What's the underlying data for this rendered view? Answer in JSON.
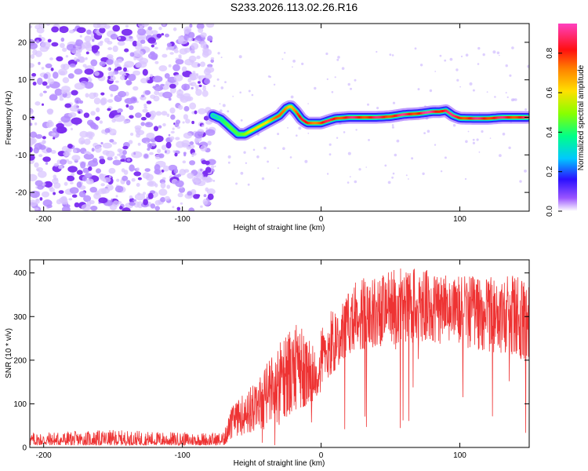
{
  "title": "S233.2026.113.02.26.R16",
  "chart_data": [
    {
      "type": "heatmap",
      "title": "S233.2026.113.02.26.R16",
      "xlabel": "Height of straight line (km)",
      "ylabel": "Frequency (Hz)",
      "xlim": [
        -210,
        150
      ],
      "ylim": [
        -25,
        25
      ],
      "xticks": [
        -200,
        -100,
        0,
        100
      ],
      "xtick_labels": [
        "-200",
        "-100",
        "0",
        "100"
      ],
      "yticks": [
        -20,
        -10,
        0,
        10,
        20
      ],
      "ytick_labels": [
        "-20",
        "-10",
        "0",
        "10",
        "20"
      ],
      "noise_region_x": [
        -210,
        -78
      ],
      "ridge": {
        "x": [
          -78,
          -72,
          -66,
          -60,
          -55,
          -50,
          -45,
          -40,
          -35,
          -30,
          -25,
          -22,
          -18,
          -14,
          -10,
          -5,
          0,
          10,
          20,
          30,
          40,
          50,
          60,
          70,
          80,
          85,
          90,
          95,
          100,
          110,
          120,
          130,
          140,
          150
        ],
        "y": [
          0.5,
          -0.5,
          -2.5,
          -4.5,
          -4.5,
          -3.5,
          -2.5,
          -1.5,
          -0.5,
          0.5,
          2.5,
          3,
          1.5,
          -0.5,
          -1.5,
          -1.5,
          -1.5,
          -0.3,
          0,
          0,
          0,
          0.2,
          0.8,
          1,
          1.5,
          1.5,
          1.8,
          0.5,
          -0.2,
          -0.3,
          -0.3,
          0,
          0,
          0
        ],
        "amplitude": [
          0.3,
          0.4,
          0.45,
          0.5,
          0.55,
          0.6,
          0.65,
          0.7,
          0.75,
          0.75,
          0.8,
          0.75,
          0.8,
          0.85,
          0.85,
          0.85,
          0.85,
          0.9,
          0.9,
          0.9,
          0.9,
          0.9,
          0.92,
          0.92,
          0.95,
          0.95,
          0.95,
          0.9,
          0.9,
          0.9,
          0.92,
          0.9,
          0.9,
          0.88
        ]
      },
      "colorbar": {
        "label": "Normalized spectral amplitude",
        "range": [
          0,
          0.95
        ],
        "ticks": [
          0.0,
          0.2,
          0.4,
          0.6,
          0.8
        ],
        "tick_labels": [
          "0.0",
          "0.2",
          "0.4",
          "0.6",
          "0.8"
        ]
      }
    },
    {
      "type": "line",
      "xlabel": "Height of straight line (km)",
      "ylabel": "SNR (10 * v/v)",
      "xlim": [
        -210,
        150
      ],
      "ylim": [
        0,
        430
      ],
      "xticks": [
        -200,
        -100,
        0,
        100
      ],
      "xtick_labels": [
        "-200",
        "-100",
        "0",
        "100"
      ],
      "yticks": [
        0,
        100,
        200,
        300,
        400
      ],
      "ytick_labels": [
        "0",
        "100",
        "200",
        "300",
        "400"
      ],
      "series": [
        {
          "name": "SNR",
          "color": "#ee3333",
          "envelope_x": [
            -210,
            -150,
            -100,
            -70,
            -65,
            -55,
            -45,
            -35,
            -25,
            -15,
            -5,
            5,
            15,
            25,
            40,
            60,
            80,
            100,
            120,
            140,
            150
          ],
          "envelope_top": [
            35,
            40,
            35,
            35,
            90,
            130,
            155,
            220,
            260,
            290,
            230,
            310,
            330,
            385,
            400,
            415,
            405,
            395,
            390,
            395,
            380
          ],
          "envelope_bottom": [
            5,
            5,
            5,
            5,
            20,
            30,
            40,
            60,
            70,
            90,
            100,
            150,
            200,
            220,
            230,
            240,
            240,
            230,
            220,
            210,
            200
          ]
        }
      ]
    }
  ]
}
